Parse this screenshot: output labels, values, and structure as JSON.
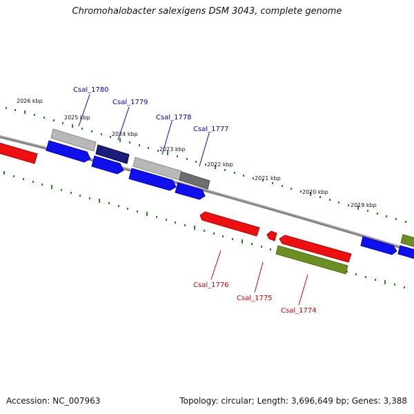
{
  "title": "Chromohalobacter salexigens DSM 3043, complete genome",
  "footer": {
    "accession": "Accession: NC_007963",
    "summary": "Topology: circular; Length: 3,696,649 bp; Genes: 3,388"
  },
  "colors": {
    "backbone": "#7a7a7a",
    "forward_cds": "#0000ee",
    "reverse_cds": "#ee0000",
    "forward_label": "#0000cc",
    "reverse_label": "#cc0000",
    "ticks": "#228b22",
    "olive_gene": "#6b8e23"
  },
  "kbp_labels": [
    "2026 kbp",
    "2025 kbp",
    "2024 kbp",
    "2023 kbp",
    "2022 kbp",
    "2021 kbp",
    "2020 kbp",
    "2019 kbp"
  ],
  "forward_labels": [
    "Csal_1780",
    "Csal_1779",
    "Csal_1778",
    "Csal_1777"
  ],
  "reverse_labels": [
    "Csal_1776",
    "Csal_1775",
    "Csal_1774"
  ]
}
